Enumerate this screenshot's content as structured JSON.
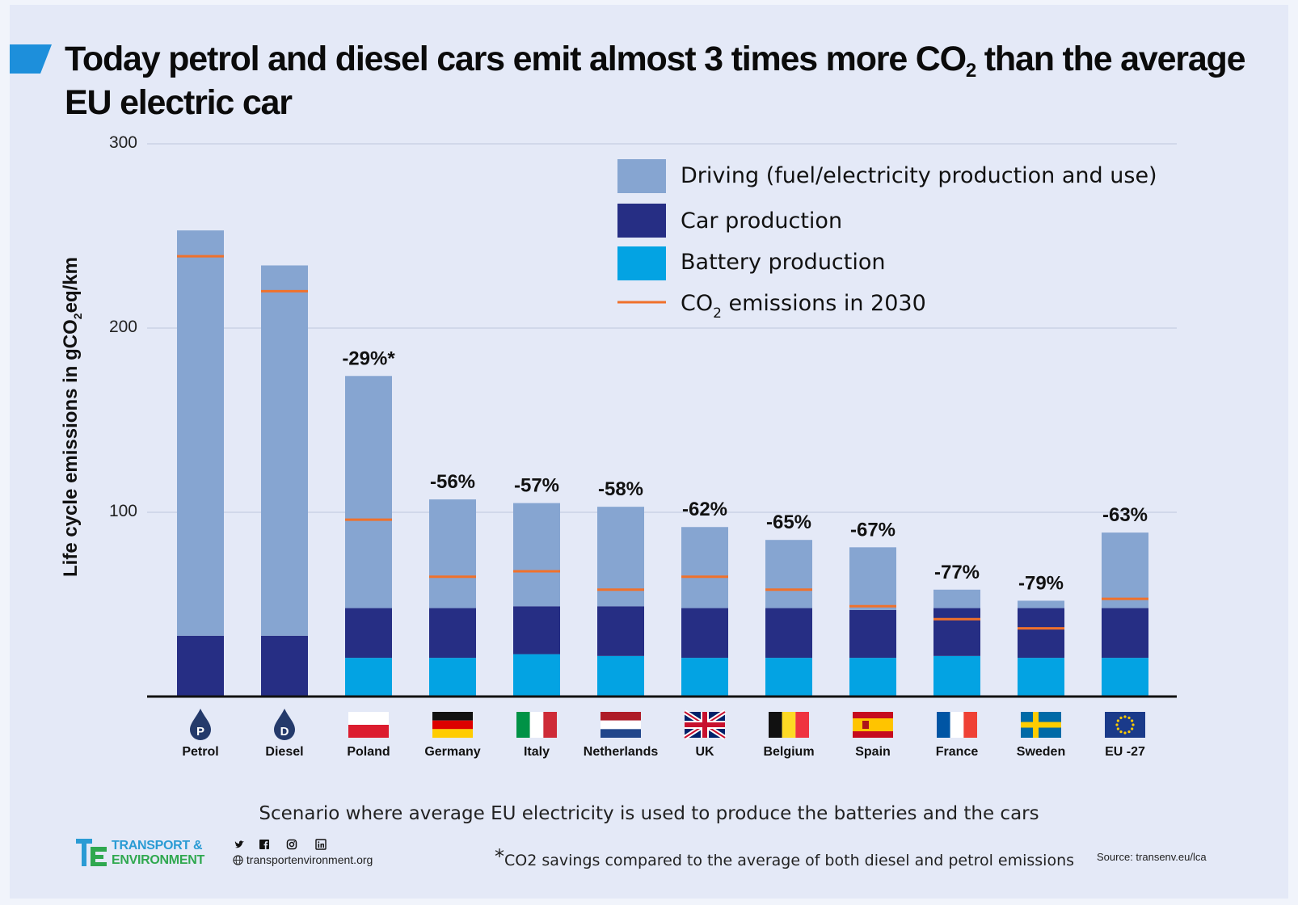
{
  "title": {
    "part1": "Today petrol and diesel cars emit almost 3 times more CO",
    "sub": "2",
    "part2": " than the average EU electric car"
  },
  "chart_data": {
    "type": "bar",
    "stacked": true,
    "categories": [
      "Petrol",
      "Diesel",
      "Poland",
      "Germany",
      "Italy",
      "Netherlands",
      "UK",
      "Belgium",
      "Spain",
      "France",
      "Sweden",
      "EU -27"
    ],
    "category_icons": [
      "petrol-drop-icon",
      "diesel-drop-icon",
      "flag-poland-icon",
      "flag-germany-icon",
      "flag-italy-icon",
      "flag-netherlands-icon",
      "flag-uk-icon",
      "flag-belgium-icon",
      "flag-spain-icon",
      "flag-france-icon",
      "flag-sweden-icon",
      "flag-eu-icon"
    ],
    "series": [
      {
        "name": "Battery production",
        "color": "#03a3e3",
        "values": [
          0,
          0,
          21,
          21,
          23,
          22,
          21,
          21,
          21,
          22,
          21,
          21
        ]
      },
      {
        "name": "Car production",
        "color": "#262e84",
        "values": [
          33,
          33,
          27,
          27,
          26,
          27,
          27,
          27,
          26,
          26,
          27,
          27
        ]
      },
      {
        "name": "Driving (fuel/electricity production and use)",
        "color": "#86a5d1",
        "values": [
          220,
          201,
          126,
          59,
          56,
          54,
          44,
          37,
          34,
          10,
          4,
          41
        ]
      }
    ],
    "line_series": {
      "name": "CO2 emissions in 2030",
      "label_part1": "CO",
      "label_sub": "2",
      "label_part2": " emissions in 2030",
      "color": "#f0712b",
      "values": [
        239,
        220,
        96,
        65,
        68,
        58,
        65,
        58,
        49,
        42,
        37,
        53
      ]
    },
    "annotations": [
      "",
      "",
      "-29%*",
      "-56%",
      "-57%",
      "-58%",
      "-62%",
      "-65%",
      "-67%",
      "-77%",
      "-79%",
      "-63%"
    ],
    "ylabel_part1": "Life  cycle emissions in gCO",
    "ylabel_sub": "2",
    "ylabel_part2": "eq/km",
    "xlabel": "Scenario where  average EU electricity is used to produce the batteries and the cars",
    "yticks": [
      100,
      200,
      300
    ],
    "ylim": [
      0,
      300
    ],
    "grid": true,
    "legend_position": "top-right"
  },
  "footnote": {
    "star": "*",
    "text": "CO2 savings compared to the average of both diesel and petrol emissions"
  },
  "source": "Source: transenv.eu/lca",
  "brand": {
    "line1": "TRANSPORT &",
    "line2": "ENVIRONMENT",
    "website": "transportenvironment.org",
    "colors": {
      "blue": "#2a9bd4",
      "green": "#2fa84f"
    }
  },
  "socials": [
    "twitter-icon",
    "facebook-icon",
    "instagram-icon",
    "linkedin-icon"
  ],
  "icon_letters": {
    "petrol": "P",
    "diesel": "D"
  },
  "colors": {
    "accent": "#1d8fdb",
    "background": "#e4e9f7"
  }
}
